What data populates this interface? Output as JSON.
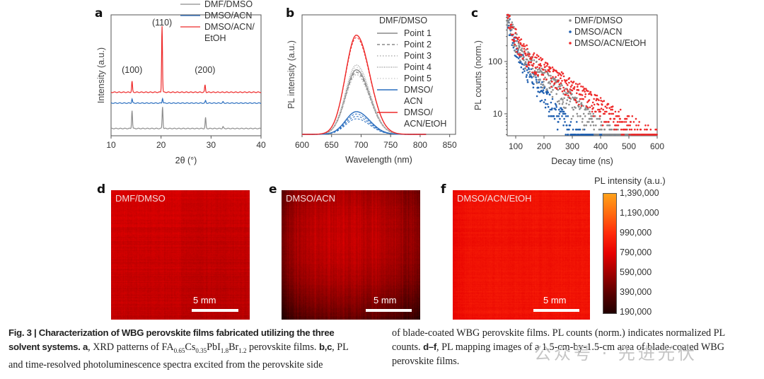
{
  "figure": {
    "panel_labels": {
      "a": "a",
      "b": "b",
      "c": "c",
      "d": "d",
      "e": "e",
      "f": "f"
    },
    "caption": {
      "lead": "Fig. 3 | Characterization of WBG perovskite films fabricated utilizing the three solvent systems.",
      "lead_line1": "Fig. 3 | Characterization of WBG perovskite films fabricated utilizing the three",
      "lead_line2": "solvent systems.",
      "a_label": "a",
      "a_text_pre": ", XRD patterns of FA",
      "sub1": "0.65",
      "cs": "Cs",
      "sub2": "0.35",
      "pbi": "PbI",
      "sub3": "1.8",
      "br": "Br",
      "sub4": "1.2",
      "a_text_post": " perovskite films. ",
      "bc_label": "b,c",
      "bc_text_1": ", PL",
      "line3": "and time-resolved photoluminescence spectra excited from the perovskite side",
      "col2_line1": "of blade-coated WBG perovskite films. PL counts (norm.) indicates normalized PL",
      "col2_line2_pre": "counts. ",
      "df_label": "d–f",
      "col2_line2_post": ", PL mapping images of a 1.5-cm-by-1.5-cm area of blade-coated WBG",
      "col2_line3": "perovskite films."
    },
    "watermark": "公众号 · 先进光伏"
  },
  "chart_data": [
    {
      "type": "line",
      "panel": "a",
      "title": "",
      "xlabel": "2θ (°)",
      "ylabel": "Intensity (a.u.)",
      "xlim": [
        10,
        40
      ],
      "xticks": [
        10,
        20,
        30,
        40
      ],
      "yticks": [],
      "legend": "top-right",
      "annotations": [
        {
          "text": "(100)",
          "x": 14.2
        },
        {
          "text": "(110)",
          "x": 20.2
        },
        {
          "text": "(200)",
          "x": 28.8
        }
      ],
      "series": [
        {
          "name": "DMF/DMSO",
          "color": "#8c8c8c",
          "offset": 0.06,
          "peaks": [
            {
              "x": 14.2,
              "h": 0.15
            },
            {
              "x": 20.3,
              "h": 0.18
            },
            {
              "x": 28.9,
              "h": 0.09
            },
            {
              "x": 32.4,
              "h": 0.015
            }
          ]
        },
        {
          "name": "DMSO/ACN",
          "color": "#2a6ebf",
          "offset": 0.27,
          "peaks": [
            {
              "x": 14.2,
              "h": 0.035
            },
            {
              "x": 20.3,
              "h": 0.04
            },
            {
              "x": 28.9,
              "h": 0.02
            },
            {
              "x": 32.4,
              "h": 0.01
            }
          ]
        },
        {
          "name": "DMSO/ACN/\nEtOH",
          "legend_lines": [
            "DMSO/ACN/",
            "EtOH"
          ],
          "color": "#ee2a2a",
          "offset": 0.36,
          "peaks": [
            {
              "x": 14.2,
              "h": 0.09
            },
            {
              "x": 20.2,
              "h": 0.55
            },
            {
              "x": 28.8,
              "h": 0.06
            }
          ]
        }
      ]
    },
    {
      "type": "line",
      "panel": "b",
      "title": "",
      "xlabel": "Wavelength (nm)",
      "ylabel": "PL intensity (a.u.)",
      "xlim": [
        600,
        860
      ],
      "xticks": [
        600,
        650,
        700,
        750,
        800,
        850
      ],
      "ylim": [
        0,
        1.0
      ],
      "legend": "top-right",
      "legend_title": "DMF/DMSO",
      "peak_center_nm": 692,
      "series": [
        {
          "name": "Point 1",
          "color": "#8a8a8a",
          "style": "solid",
          "peak": 0.54
        },
        {
          "name": "Point 2",
          "color": "#8a8a8a",
          "style": "dashed",
          "peak": 0.52
        },
        {
          "name": "Point 3",
          "color": "#b0b0b0",
          "style": "dotted",
          "peak": 0.5
        },
        {
          "name": "Point 4",
          "color": "#9a9a9a",
          "style": "dotted-dense",
          "peak": 0.58
        },
        {
          "name": "Point 5",
          "color": "#d0d0d0",
          "style": "dotted",
          "peak": 0.56
        },
        {
          "name": "DMSO/\nACN",
          "legend_lines": [
            "DMSO/",
            "ACN"
          ],
          "color": "#2a6ebf",
          "style": "solid",
          "peak": 0.19,
          "variants": [
            0.17,
            0.15,
            0.13
          ]
        },
        {
          "name": "DMSO/\nACN/EtOH",
          "legend_lines": [
            "DMSO/",
            "ACN/EtOH"
          ],
          "color": "#ee2a2a",
          "style": "solid",
          "peak": 0.83,
          "variants": [
            0.81
          ]
        }
      ]
    },
    {
      "type": "scatter",
      "panel": "c",
      "title": "",
      "xlabel": "Decay time (ns)",
      "ylabel": "PL counts (norm.)",
      "xlim": [
        70,
        600
      ],
      "ylim": [
        3.8,
        780
      ],
      "yscale": "log",
      "xticks": [
        100,
        200,
        300,
        400,
        500,
        600
      ],
      "yticks": [
        10,
        100
      ],
      "legend": "top-right",
      "series": [
        {
          "name": "DMF/DMSO",
          "color": "#8c8c8c",
          "tau_fast": 18,
          "tau_slow": 90,
          "floor": 4
        },
        {
          "name": "DMSO/ACN",
          "color": "#1f5fb0",
          "tau_fast": 14,
          "tau_slow": 60,
          "floor": 4
        },
        {
          "name": "DMSO/ACN/EtOH",
          "color": "#ee2a2a",
          "tau_fast": 20,
          "tau_slow": 120,
          "floor": 4
        }
      ]
    },
    {
      "type": "heatmap",
      "panels": [
        {
          "panel": "d",
          "label": "DMF/DMSO",
          "scale_bar": "5 mm",
          "mean_intensity": 740000
        },
        {
          "panel": "e",
          "label": "DMSO/ACN",
          "scale_bar": "5 mm",
          "mean_intensity": 560000
        },
        {
          "panel": "f",
          "label": "DMSO/ACN/EtOH",
          "scale_bar": "5 mm",
          "mean_intensity": 880000
        }
      ],
      "colorbar": {
        "title": "PL intensity (a.u.)",
        "min": 190000,
        "max": 1390000,
        "ticks": [
          "1,390,000",
          "1,190,000",
          "990,000",
          "790,000",
          "590,000",
          "390,000",
          "190,000"
        ],
        "colors": [
          "#ffa21a",
          "#ff6a10",
          "#ff2a0a",
          "#e60000",
          "#a00000",
          "#5a0000",
          "#200000"
        ]
      }
    }
  ]
}
